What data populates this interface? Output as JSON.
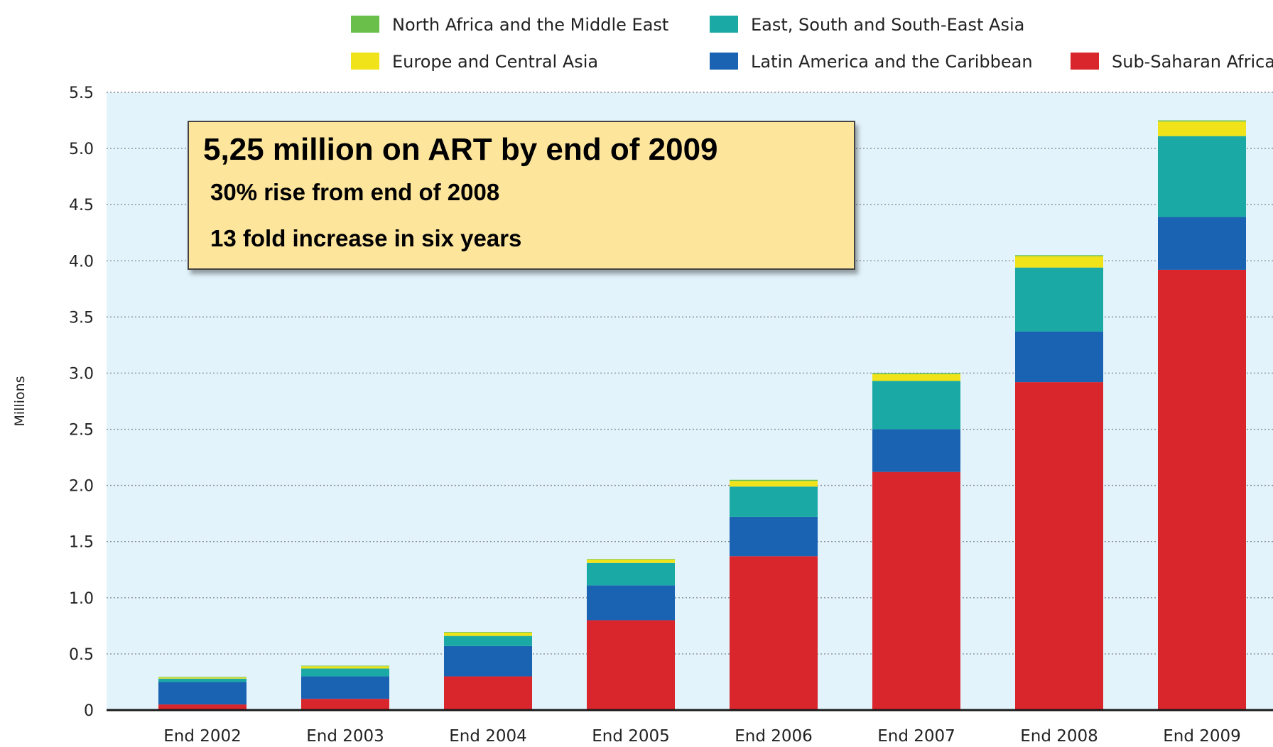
{
  "chart_data": {
    "type": "bar",
    "stacked": true,
    "ylabel": "Millions",
    "xlabel": "",
    "ylim": [
      0,
      5.5
    ],
    "yticks": [
      "0",
      "0.5",
      "1.0",
      "1.5",
      "2.0",
      "2.5",
      "3.0",
      "3.5",
      "4.0",
      "4.5",
      "5.0",
      "5.5"
    ],
    "yticks_values": [
      0,
      0.5,
      1.0,
      1.5,
      2.0,
      2.5,
      3.0,
      3.5,
      4.0,
      4.5,
      5.0,
      5.5
    ],
    "grid": true,
    "categories": [
      "End 2002",
      "End 2003",
      "End 2004",
      "End 2005",
      "End 2006",
      "End 2007",
      "End 2008",
      "End 2009"
    ],
    "series": [
      {
        "name": "Sub-Saharan Africa",
        "color": "#d9262c",
        "values": [
          0.05,
          0.1,
          0.3,
          0.8,
          1.37,
          2.12,
          2.92,
          3.92
        ]
      },
      {
        "name": "Latin America and the Caribbean",
        "color": "#1a63b3",
        "values": [
          0.2,
          0.2,
          0.27,
          0.31,
          0.35,
          0.38,
          0.45,
          0.47
        ]
      },
      {
        "name": "East, South and South-East Asia",
        "color": "#1ba9a6",
        "values": [
          0.03,
          0.07,
          0.09,
          0.2,
          0.27,
          0.43,
          0.57,
          0.72
        ]
      },
      {
        "name": "Europe and Central Asia",
        "color": "#f1e319",
        "values": [
          0.01,
          0.02,
          0.03,
          0.03,
          0.05,
          0.06,
          0.1,
          0.13
        ]
      },
      {
        "name": "North Africa and the Middle East",
        "color": "#6abf4b",
        "values": [
          0.005,
          0.005,
          0.005,
          0.005,
          0.01,
          0.01,
          0.01,
          0.01
        ]
      }
    ],
    "legend": [
      {
        "name": "North Africa and the Middle East",
        "color": "#6abf4b"
      },
      {
        "name": "East, South and South-East Asia",
        "color": "#1ba9a6"
      },
      {
        "name": "Europe and Central Asia",
        "color": "#f1e319"
      },
      {
        "name": "Latin America and the Caribbean",
        "color": "#1a63b3"
      },
      {
        "name": "Sub-Saharan Africa",
        "color": "#d9262c"
      }
    ],
    "legend_position": "top",
    "plot_background": "#e3f3fb",
    "annotation": {
      "title": "5,25 million on ART by end of 2009",
      "lines": [
        "30% rise from end of 2008",
        "13 fold increase in six years"
      ]
    }
  }
}
